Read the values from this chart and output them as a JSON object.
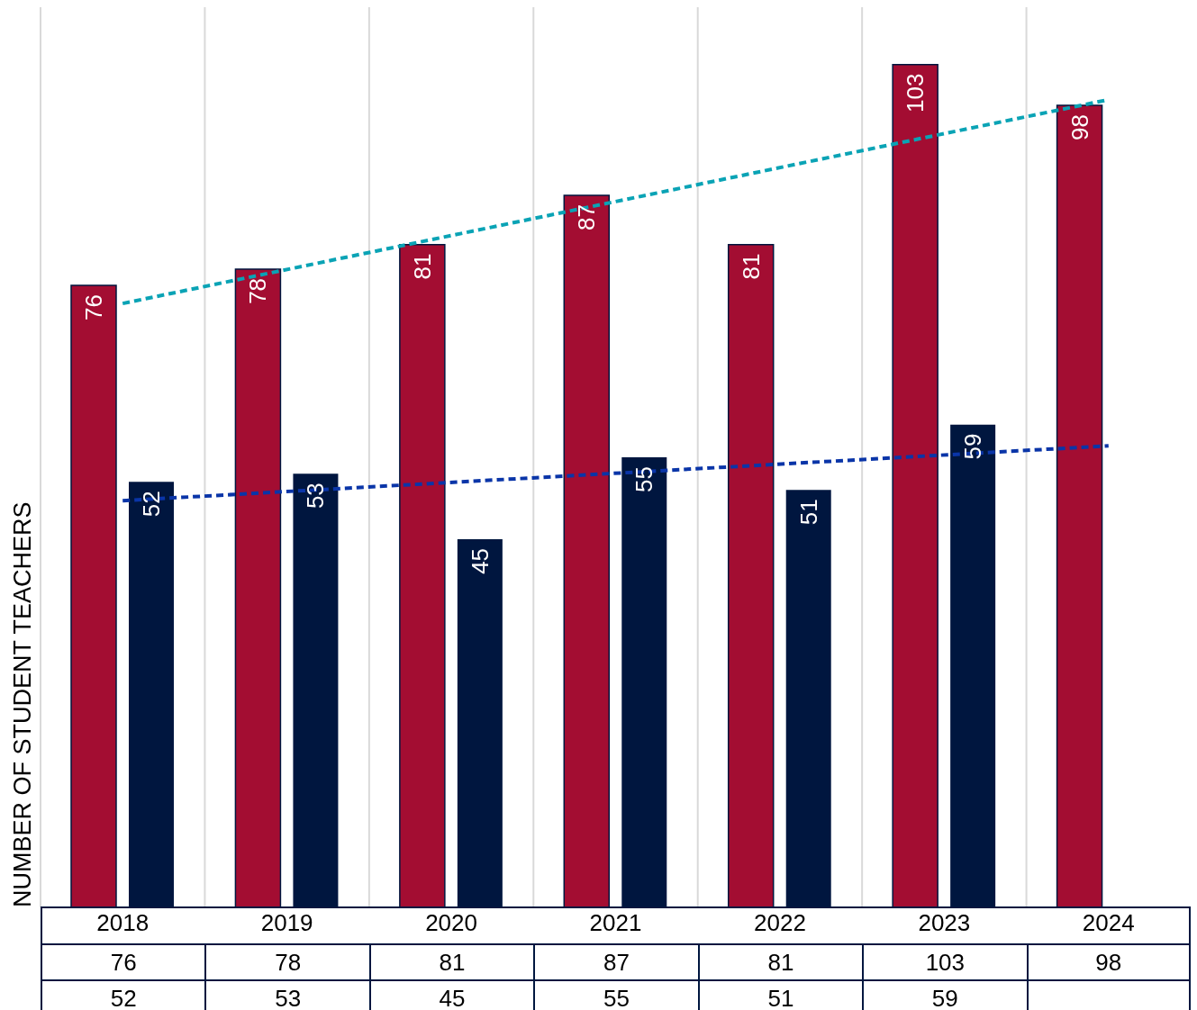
{
  "chart_data": {
    "type": "bar",
    "ylabel": "NUMBER OF STUDENT TEACHERS",
    "categories": [
      "2018",
      "2019",
      "2020",
      "2021",
      "2022",
      "2023",
      "2024"
    ],
    "ylim": [
      0,
      110
    ],
    "grid": "x",
    "legend": false,
    "series": [
      {
        "color": "#a30d32",
        "values": [
          76,
          78,
          81,
          87,
          81,
          103,
          98
        ],
        "value_labels": [
          "76",
          "78",
          "81",
          "87",
          "81",
          "103",
          "98"
        ]
      },
      {
        "color": "#00163f",
        "values": [
          52,
          53,
          45,
          55,
          51,
          59,
          null
        ],
        "value_labels": [
          "52",
          "53",
          "45",
          "55",
          "51",
          "59",
          null
        ]
      },
      {
        "type": "line",
        "color": "#0aa3b5",
        "line_style": "dashed",
        "values": [
          73.8,
          null,
          null,
          null,
          null,
          null,
          98.7
        ]
      },
      {
        "type": "line",
        "color": "#0a35a8",
        "line_style": "dashed",
        "values": [
          49.7,
          null,
          null,
          null,
          null,
          null,
          56.4
        ]
      }
    ]
  }
}
